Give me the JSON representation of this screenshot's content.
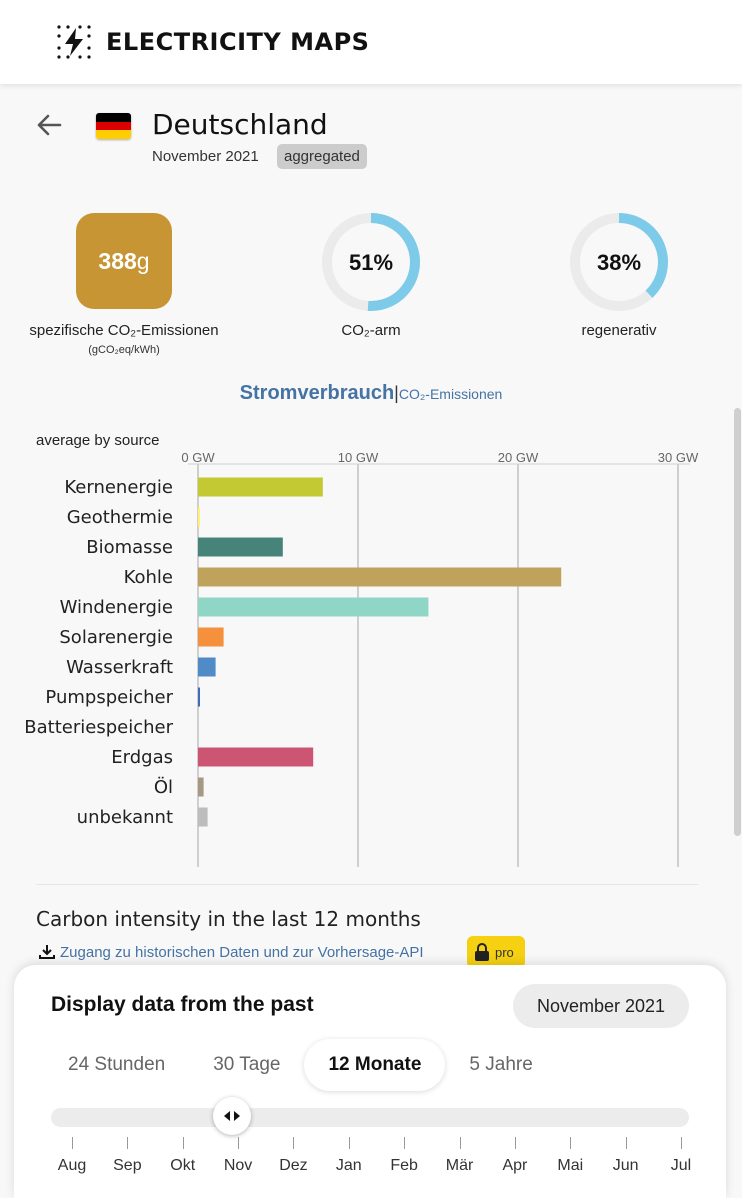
{
  "header": {
    "brand": "ELECTRICITY MAPS",
    "logo_icon": "lightning-bolt-icon"
  },
  "zone": {
    "name": "Deutschland",
    "date": "November 2021",
    "badge": "aggregated",
    "flag_colors": [
      "#000000",
      "#dd0000",
      "#ffce00"
    ]
  },
  "stats": {
    "carbon_intensity_value": "388",
    "carbon_intensity_unit": "g",
    "carbon_intensity_color": "#c79533",
    "carbon_intensity_label": "spezifische CO₂-Emissionen",
    "carbon_intensity_sublabel": "(gCO₂eq/kWh)",
    "low_carbon": {
      "value": "51%",
      "fraction": 0.51,
      "label": "CO₂-arm"
    },
    "renewable": {
      "value": "38%",
      "fraction": 0.38,
      "label": "regenerativ"
    },
    "ring_color": "#7dcbe8"
  },
  "chart_toggle": {
    "active": "Stromverbrauch",
    "separator": "|",
    "other": "CO₂-Emissionen"
  },
  "chart_data": {
    "type": "bar",
    "orientation": "horizontal",
    "subtitle": "average by source",
    "xlim": [
      0,
      30
    ],
    "ticks": [
      0,
      10,
      20,
      30
    ],
    "tick_labels": [
      "0 GW",
      "10 GW",
      "20 GW",
      "30 GW"
    ],
    "grid": true,
    "categories": [
      "Kernenergie",
      "Geothermie",
      "Biomasse",
      "Kohle",
      "Windenergie",
      "Solarenergie",
      "Wasserkraft",
      "Pumpspeicher",
      "Batteriespeicher",
      "Erdgas",
      "Öl",
      "unbekannt"
    ],
    "values": [
      7.8,
      0.05,
      5.3,
      22.7,
      14.4,
      1.6,
      1.1,
      0.1,
      0,
      7.2,
      0.35,
      0.6
    ],
    "colors": [
      "#c2c932",
      "#fff176",
      "#468479",
      "#bfa35d",
      "#8fd6c6",
      "#f5913d",
      "#508ac7",
      "#3e6db7",
      "#3e6db7",
      "#cc5573",
      "#a69883",
      "#bdbdbd"
    ]
  },
  "history": {
    "title": "Carbon intensity in the last 12 months",
    "link": "Zugang zu historischen Daten und zur Vorhersage-API",
    "pro": "pro"
  },
  "time_panel": {
    "title": "Display data from the past",
    "selected_date": "November 2021",
    "tabs": [
      "24 Stunden",
      "30 Tage",
      "12 Monate",
      "5 Jahre"
    ],
    "active_tab": "12 Monate",
    "slider_position_fraction": 0.283,
    "months": [
      "Aug",
      "Sep",
      "Okt",
      "Nov",
      "Dez",
      "Jan",
      "Feb",
      "Mär",
      "Apr",
      "Mai",
      "Jun",
      "Jul"
    ]
  }
}
